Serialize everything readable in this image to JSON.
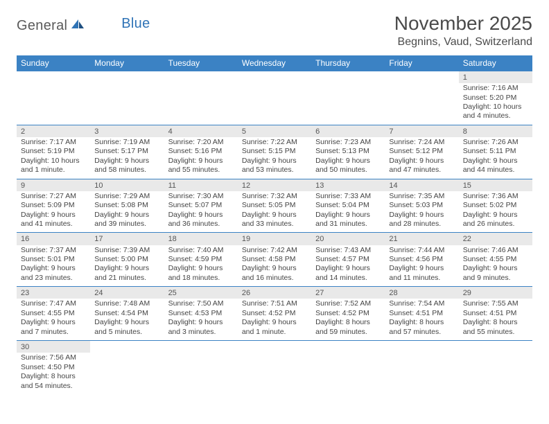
{
  "logo": {
    "text_general": "General",
    "text_blue": "Blue"
  },
  "title": "November 2025",
  "location": "Begnins, Vaud, Switzerland",
  "colors": {
    "header_bg": "#3b82c4",
    "header_text": "#ffffff",
    "daynum_bg": "#e9e9e9",
    "row_border": "#3b82c4",
    "logo_gray": "#5a5a5a",
    "logo_blue": "#2f73b6",
    "text": "#444444",
    "background": "#ffffff"
  },
  "day_headers": [
    "Sunday",
    "Monday",
    "Tuesday",
    "Wednesday",
    "Thursday",
    "Friday",
    "Saturday"
  ],
  "weeks": [
    [
      null,
      null,
      null,
      null,
      null,
      null,
      {
        "n": "1",
        "sr": "Sunrise: 7:16 AM",
        "ss": "Sunset: 5:20 PM",
        "d1": "Daylight: 10 hours",
        "d2": "and 4 minutes."
      }
    ],
    [
      {
        "n": "2",
        "sr": "Sunrise: 7:17 AM",
        "ss": "Sunset: 5:19 PM",
        "d1": "Daylight: 10 hours",
        "d2": "and 1 minute."
      },
      {
        "n": "3",
        "sr": "Sunrise: 7:19 AM",
        "ss": "Sunset: 5:17 PM",
        "d1": "Daylight: 9 hours",
        "d2": "and 58 minutes."
      },
      {
        "n": "4",
        "sr": "Sunrise: 7:20 AM",
        "ss": "Sunset: 5:16 PM",
        "d1": "Daylight: 9 hours",
        "d2": "and 55 minutes."
      },
      {
        "n": "5",
        "sr": "Sunrise: 7:22 AM",
        "ss": "Sunset: 5:15 PM",
        "d1": "Daylight: 9 hours",
        "d2": "and 53 minutes."
      },
      {
        "n": "6",
        "sr": "Sunrise: 7:23 AM",
        "ss": "Sunset: 5:13 PM",
        "d1": "Daylight: 9 hours",
        "d2": "and 50 minutes."
      },
      {
        "n": "7",
        "sr": "Sunrise: 7:24 AM",
        "ss": "Sunset: 5:12 PM",
        "d1": "Daylight: 9 hours",
        "d2": "and 47 minutes."
      },
      {
        "n": "8",
        "sr": "Sunrise: 7:26 AM",
        "ss": "Sunset: 5:11 PM",
        "d1": "Daylight: 9 hours",
        "d2": "and 44 minutes."
      }
    ],
    [
      {
        "n": "9",
        "sr": "Sunrise: 7:27 AM",
        "ss": "Sunset: 5:09 PM",
        "d1": "Daylight: 9 hours",
        "d2": "and 41 minutes."
      },
      {
        "n": "10",
        "sr": "Sunrise: 7:29 AM",
        "ss": "Sunset: 5:08 PM",
        "d1": "Daylight: 9 hours",
        "d2": "and 39 minutes."
      },
      {
        "n": "11",
        "sr": "Sunrise: 7:30 AM",
        "ss": "Sunset: 5:07 PM",
        "d1": "Daylight: 9 hours",
        "d2": "and 36 minutes."
      },
      {
        "n": "12",
        "sr": "Sunrise: 7:32 AM",
        "ss": "Sunset: 5:05 PM",
        "d1": "Daylight: 9 hours",
        "d2": "and 33 minutes."
      },
      {
        "n": "13",
        "sr": "Sunrise: 7:33 AM",
        "ss": "Sunset: 5:04 PM",
        "d1": "Daylight: 9 hours",
        "d2": "and 31 minutes."
      },
      {
        "n": "14",
        "sr": "Sunrise: 7:35 AM",
        "ss": "Sunset: 5:03 PM",
        "d1": "Daylight: 9 hours",
        "d2": "and 28 minutes."
      },
      {
        "n": "15",
        "sr": "Sunrise: 7:36 AM",
        "ss": "Sunset: 5:02 PM",
        "d1": "Daylight: 9 hours",
        "d2": "and 26 minutes."
      }
    ],
    [
      {
        "n": "16",
        "sr": "Sunrise: 7:37 AM",
        "ss": "Sunset: 5:01 PM",
        "d1": "Daylight: 9 hours",
        "d2": "and 23 minutes."
      },
      {
        "n": "17",
        "sr": "Sunrise: 7:39 AM",
        "ss": "Sunset: 5:00 PM",
        "d1": "Daylight: 9 hours",
        "d2": "and 21 minutes."
      },
      {
        "n": "18",
        "sr": "Sunrise: 7:40 AM",
        "ss": "Sunset: 4:59 PM",
        "d1": "Daylight: 9 hours",
        "d2": "and 18 minutes."
      },
      {
        "n": "19",
        "sr": "Sunrise: 7:42 AM",
        "ss": "Sunset: 4:58 PM",
        "d1": "Daylight: 9 hours",
        "d2": "and 16 minutes."
      },
      {
        "n": "20",
        "sr": "Sunrise: 7:43 AM",
        "ss": "Sunset: 4:57 PM",
        "d1": "Daylight: 9 hours",
        "d2": "and 14 minutes."
      },
      {
        "n": "21",
        "sr": "Sunrise: 7:44 AM",
        "ss": "Sunset: 4:56 PM",
        "d1": "Daylight: 9 hours",
        "d2": "and 11 minutes."
      },
      {
        "n": "22",
        "sr": "Sunrise: 7:46 AM",
        "ss": "Sunset: 4:55 PM",
        "d1": "Daylight: 9 hours",
        "d2": "and 9 minutes."
      }
    ],
    [
      {
        "n": "23",
        "sr": "Sunrise: 7:47 AM",
        "ss": "Sunset: 4:55 PM",
        "d1": "Daylight: 9 hours",
        "d2": "and 7 minutes."
      },
      {
        "n": "24",
        "sr": "Sunrise: 7:48 AM",
        "ss": "Sunset: 4:54 PM",
        "d1": "Daylight: 9 hours",
        "d2": "and 5 minutes."
      },
      {
        "n": "25",
        "sr": "Sunrise: 7:50 AM",
        "ss": "Sunset: 4:53 PM",
        "d1": "Daylight: 9 hours",
        "d2": "and 3 minutes."
      },
      {
        "n": "26",
        "sr": "Sunrise: 7:51 AM",
        "ss": "Sunset: 4:52 PM",
        "d1": "Daylight: 9 hours",
        "d2": "and 1 minute."
      },
      {
        "n": "27",
        "sr": "Sunrise: 7:52 AM",
        "ss": "Sunset: 4:52 PM",
        "d1": "Daylight: 8 hours",
        "d2": "and 59 minutes."
      },
      {
        "n": "28",
        "sr": "Sunrise: 7:54 AM",
        "ss": "Sunset: 4:51 PM",
        "d1": "Daylight: 8 hours",
        "d2": "and 57 minutes."
      },
      {
        "n": "29",
        "sr": "Sunrise: 7:55 AM",
        "ss": "Sunset: 4:51 PM",
        "d1": "Daylight: 8 hours",
        "d2": "and 55 minutes."
      }
    ],
    [
      {
        "n": "30",
        "sr": "Sunrise: 7:56 AM",
        "ss": "Sunset: 4:50 PM",
        "d1": "Daylight: 8 hours",
        "d2": "and 54 minutes."
      },
      null,
      null,
      null,
      null,
      null,
      null
    ]
  ]
}
